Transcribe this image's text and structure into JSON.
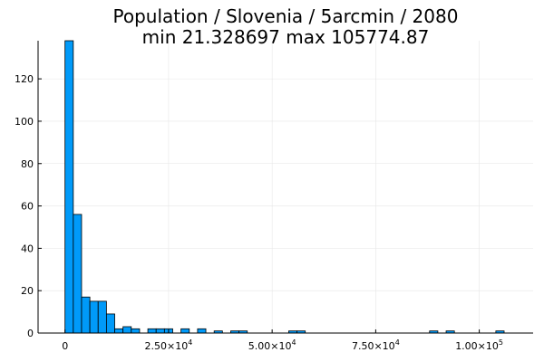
{
  "chart_data": {
    "type": "bar",
    "title_lines": [
      "Population / Slovenia / 5arcmin / 2080",
      "min 21.328697  max 105774.87"
    ],
    "xlabel": "",
    "ylabel": "",
    "bin_width": 2000,
    "bins_start": [
      0,
      2000,
      4000,
      6000,
      8000,
      10000,
      12000,
      14000,
      16000,
      18000,
      20000,
      22000,
      24000,
      26000,
      28000,
      30000,
      32000,
      34000,
      36000,
      38000,
      40000,
      42000,
      44000,
      54000,
      56000,
      88000,
      92000,
      104000
    ],
    "values": [
      138,
      56,
      17,
      15,
      15,
      9,
      2,
      3,
      2,
      0,
      2,
      2,
      2,
      0,
      2,
      0,
      2,
      0,
      1,
      0,
      1,
      1,
      0,
      1,
      1,
      1,
      1,
      1
    ],
    "xlim": [
      -6500,
      113000
    ],
    "ylim": [
      0,
      138
    ],
    "x_ticks": [
      {
        "value": 0,
        "mantissa": "0",
        "exponent": ""
      },
      {
        "value": 25000,
        "mantissa": "2.50×10",
        "exponent": "4"
      },
      {
        "value": 50000,
        "mantissa": "5.00×10",
        "exponent": "4"
      },
      {
        "value": 75000,
        "mantissa": "7.50×10",
        "exponent": "4"
      },
      {
        "value": 100000,
        "mantissa": "1.00×10",
        "exponent": "5"
      }
    ],
    "y_ticks": [
      {
        "value": 0,
        "label": "0"
      },
      {
        "value": 20,
        "label": "20"
      },
      {
        "value": 40,
        "label": "40"
      },
      {
        "value": 60,
        "label": "60"
      },
      {
        "value": 80,
        "label": "80"
      },
      {
        "value": 100,
        "label": "100"
      },
      {
        "value": 120,
        "label": "120"
      }
    ],
    "grid": true,
    "legend": "none",
    "colors": {
      "bar_fill": "#009af9",
      "bar_stroke": "#000000",
      "grid": "#e6e6e6",
      "axis": "#000000"
    }
  }
}
